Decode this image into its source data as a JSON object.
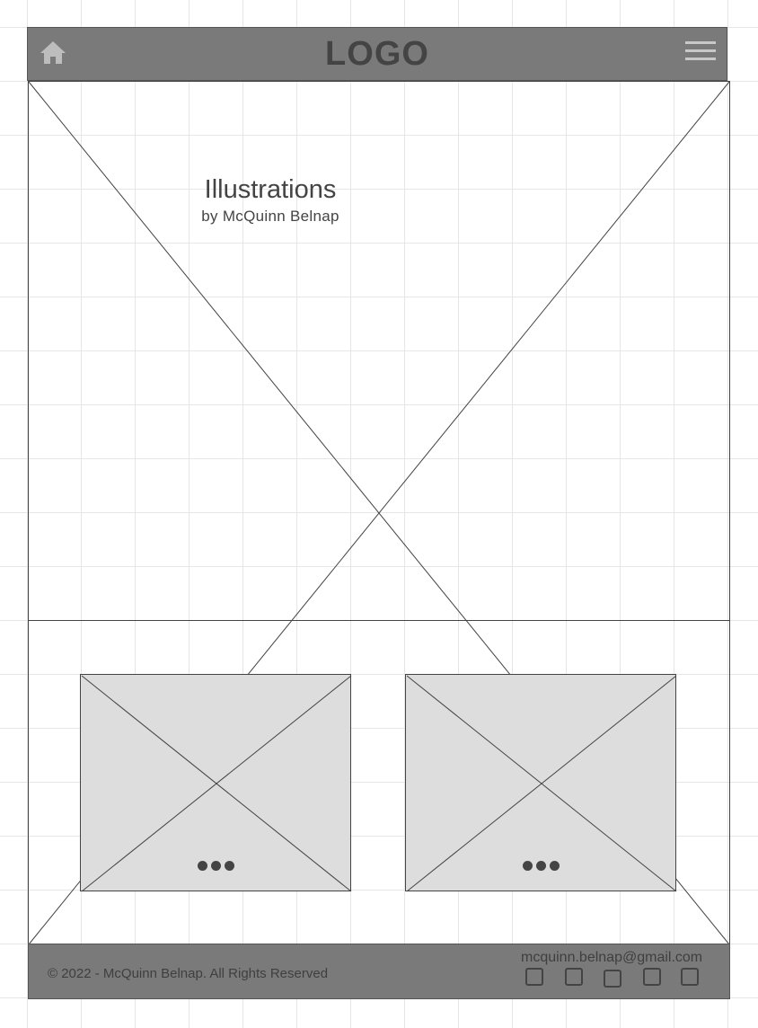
{
  "header": {
    "logo": "LOGO",
    "home_icon": "home-icon",
    "menu_icon": "hamburger-menu-icon"
  },
  "hero": {
    "title": "Illustrations",
    "subtitle": "by McQuinn Belnap"
  },
  "cards": [
    {
      "placeholder_icon": "image-placeholder-icon",
      "more_icon": "ellipsis-icon"
    },
    {
      "placeholder_icon": "image-placeholder-icon",
      "more_icon": "ellipsis-icon"
    }
  ],
  "footer": {
    "copyright": "© 2022 - McQuinn Belnap. All Rights Reserved",
    "email": "mcquinn.belnap@gmail.com",
    "social_icons": [
      "social-icon-1",
      "social-icon-2",
      "social-icon-3",
      "social-icon-4",
      "social-icon-5"
    ]
  },
  "colors": {
    "bar": "#7a7a7a",
    "dark": "#444444",
    "card": "#dddddd"
  }
}
